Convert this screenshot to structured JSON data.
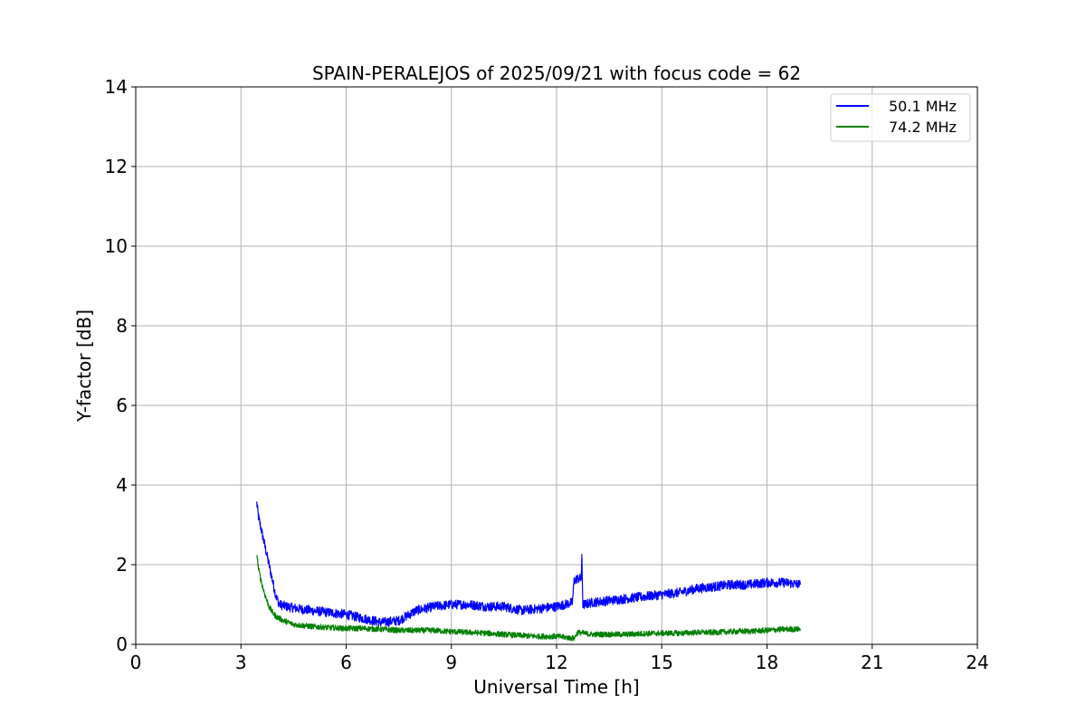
{
  "chart_data": {
    "type": "line",
    "title": "SPAIN-PERALEJOS of 2025/09/21 with focus code = 62",
    "xlabel": "Universal Time [h]",
    "ylabel": "Y-factor [dB]",
    "xlim": [
      0,
      24
    ],
    "ylim": [
      0,
      14
    ],
    "xticks": [
      0,
      3,
      6,
      9,
      12,
      15,
      18,
      21,
      24
    ],
    "yticks": [
      0,
      2,
      4,
      6,
      8,
      10,
      12,
      14
    ],
    "grid": true,
    "legend_position": "top-right",
    "series": [
      {
        "name": "50.1 MHz",
        "color": "#0000ff",
        "noise": 0.12,
        "x": [
          3.45,
          3.5,
          3.6,
          3.7,
          3.8,
          3.9,
          4.0,
          4.1,
          4.3,
          4.6,
          5.0,
          5.5,
          6.0,
          6.5,
          7.0,
          7.5,
          8.0,
          8.5,
          9.0,
          9.5,
          10.0,
          10.5,
          11.0,
          11.5,
          12.0,
          12.45,
          12.5,
          12.6,
          12.7,
          12.72,
          12.75,
          12.8,
          13.0,
          13.5,
          14.0,
          14.5,
          15.0,
          15.5,
          16.0,
          16.5,
          17.0,
          17.5,
          18.0,
          18.5,
          18.95
        ],
        "y": [
          3.55,
          3.2,
          2.8,
          2.4,
          2.0,
          1.6,
          1.2,
          1.0,
          0.95,
          0.9,
          0.85,
          0.8,
          0.75,
          0.65,
          0.55,
          0.6,
          0.85,
          0.95,
          1.0,
          1.0,
          0.95,
          0.95,
          0.85,
          0.9,
          0.95,
          1.05,
          1.6,
          1.65,
          1.65,
          2.15,
          1.0,
          1.0,
          1.05,
          1.1,
          1.15,
          1.2,
          1.25,
          1.3,
          1.4,
          1.45,
          1.5,
          1.5,
          1.55,
          1.55,
          1.5
        ]
      },
      {
        "name": "74.2 MHz",
        "color": "#008000",
        "noise": 0.07,
        "x": [
          3.45,
          3.5,
          3.6,
          3.7,
          3.8,
          3.9,
          4.0,
          4.2,
          4.5,
          5.0,
          5.5,
          6.0,
          6.5,
          7.0,
          7.5,
          8.0,
          8.5,
          9.0,
          9.5,
          10.0,
          10.5,
          11.0,
          11.5,
          12.0,
          12.5,
          12.6,
          13.0,
          13.5,
          14.0,
          14.5,
          15.0,
          15.5,
          16.0,
          16.5,
          17.0,
          17.5,
          18.0,
          18.5,
          18.95
        ],
        "y": [
          2.3,
          1.9,
          1.5,
          1.2,
          0.95,
          0.8,
          0.7,
          0.6,
          0.5,
          0.45,
          0.42,
          0.4,
          0.4,
          0.38,
          0.35,
          0.35,
          0.35,
          0.32,
          0.3,
          0.28,
          0.25,
          0.22,
          0.2,
          0.2,
          0.15,
          0.3,
          0.25,
          0.25,
          0.25,
          0.27,
          0.28,
          0.28,
          0.3,
          0.3,
          0.32,
          0.33,
          0.35,
          0.38,
          0.38
        ]
      }
    ]
  }
}
